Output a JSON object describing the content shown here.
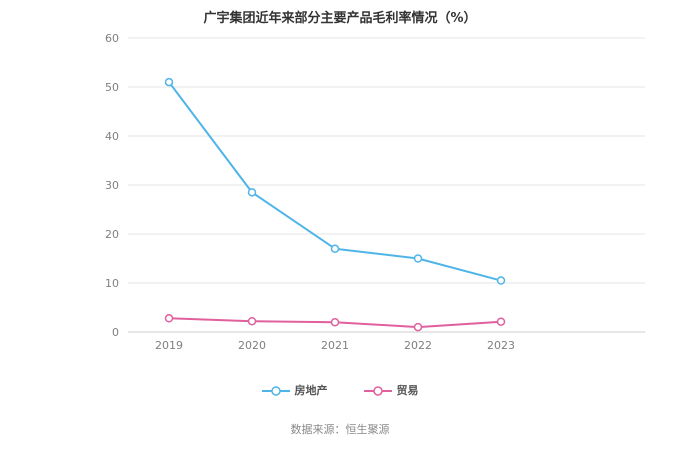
{
  "title": "广宇集团近年来部分主要产品毛利率情况（%）",
  "footer": {
    "source_text": "数据来源：恒生聚源"
  },
  "colors": {
    "series_real_estate": "#4FB4E8",
    "series_trade": "#E0609E",
    "gridline": "#e6e6e6",
    "axis_line": "#cccccc",
    "tick_label": "#808080",
    "title_text": "#333333",
    "legend_text": "#555555",
    "footer_text": "#8a8a8a"
  },
  "chart_data": {
    "type": "line",
    "title": "广宇集团近年来部分主要产品毛利率情况（%）",
    "categories": [
      "2019",
      "2020",
      "2021",
      "2022",
      "2023"
    ],
    "series": [
      {
        "name": "房地产",
        "color": "#4FB4E8",
        "values": [
          51.0,
          28.5,
          17.0,
          15.0,
          10.5
        ]
      },
      {
        "name": "贸易",
        "color": "#E0609E",
        "values": [
          2.8,
          2.2,
          2.0,
          1.0,
          2.1
        ]
      }
    ],
    "xlabel": "",
    "ylabel": "",
    "ylim": [
      0,
      60
    ],
    "yticks": [
      0,
      10,
      20,
      30,
      40,
      50,
      60
    ],
    "grid": true,
    "legend_position": "bottom",
    "marker": "open-circle",
    "source_note": "数据来源：恒生聚源"
  }
}
